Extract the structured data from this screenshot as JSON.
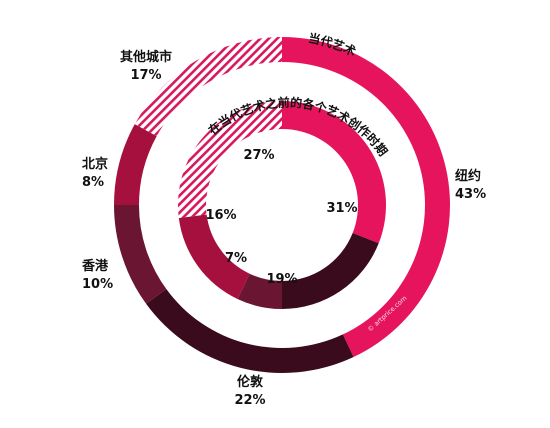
{
  "colors": {
    "new_york": "#e6145d",
    "london": "#3a0a1d",
    "hong_kong": "#6a1633",
    "beijing": "#a5103f",
    "other": "#d61a5a",
    "hatch": "#d8175c"
  },
  "chart_data": [
    {
      "type": "pie",
      "title": "当代艺术",
      "ring": "outer",
      "categories": [
        "纽约",
        "伦敦",
        "香港",
        "北京",
        "其他城市"
      ],
      "values": [
        43,
        22,
        10,
        8,
        17
      ],
      "value_labels": [
        "43%",
        "22%",
        "10%",
        "8%",
        "17%"
      ]
    },
    {
      "type": "pie",
      "title": "在当代艺术之前的各个艺术创作时期",
      "ring": "inner",
      "categories": [
        "纽约",
        "伦敦",
        "香港",
        "北京",
        "其他城市"
      ],
      "values": [
        31,
        19,
        7,
        16,
        27
      ],
      "value_labels": [
        "31%",
        "19%",
        "7%",
        "16%",
        "27%"
      ]
    }
  ],
  "watermark": "© artprice.com"
}
